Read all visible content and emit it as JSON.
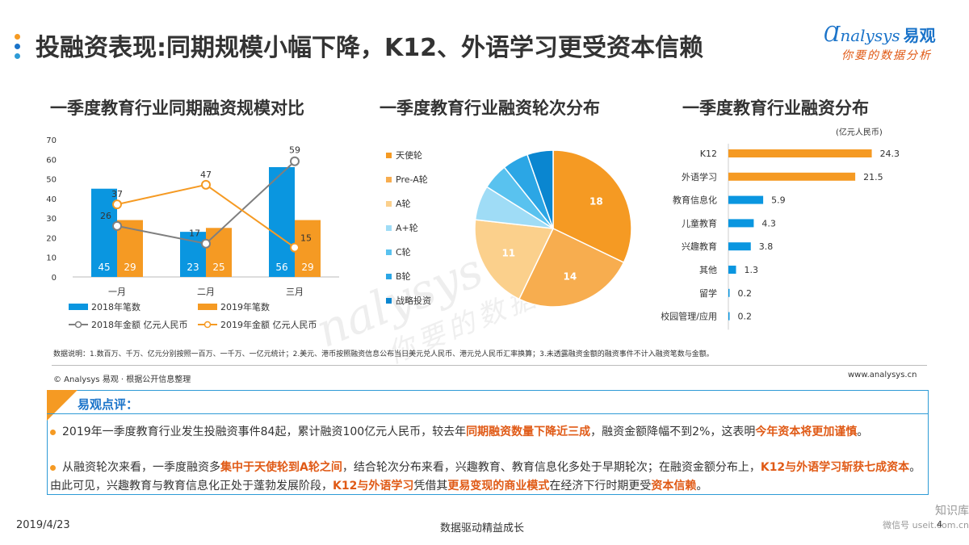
{
  "header": {
    "title": "投融资表现:同期规模小幅下降，K12、外语学习更受资本信赖",
    "dot_colors": [
      "#f59a23",
      "#1a73c9",
      "#2e9bd6"
    ],
    "logo_main": "nalysys",
    "logo_cn": "易观",
    "logo_slogan": "你要的数据分析"
  },
  "chart_data": [
    {
      "type": "bar",
      "title": "一季度教育行业同期融资规模对比",
      "categories": [
        "一月",
        "二月",
        "三月"
      ],
      "ylim": [
        0,
        70
      ],
      "yticks": [
        0,
        10,
        20,
        30,
        40,
        50,
        60,
        70
      ],
      "grid": false,
      "legend_placement": "bottom",
      "series": [
        {
          "name": "2018年笔数",
          "kind": "bar",
          "color": "#0a96e0",
          "values": [
            45,
            23,
            56
          ]
        },
        {
          "name": "2019年笔数",
          "kind": "bar",
          "color": "#f59a23",
          "values": [
            29,
            25,
            29
          ]
        },
        {
          "name": "2018年金额 亿元人民币",
          "kind": "line",
          "color": "#7f7f7f",
          "values": [
            26,
            17,
            59
          ]
        },
        {
          "name": "2019年金额 亿元人民币",
          "kind": "line",
          "color": "#f59a23",
          "values": [
            37,
            47,
            15
          ]
        }
      ]
    },
    {
      "type": "pie",
      "title": "一季度教育行业融资轮次分布",
      "legend_placement": "left",
      "labels": [
        "天使轮",
        "Pre-A轮",
        "A轮",
        "A+轮",
        "C轮",
        "B轮",
        "战略投资"
      ],
      "values": [
        18,
        14,
        11,
        4,
        3,
        3,
        3
      ],
      "shown_labels": [
        "18",
        "14",
        "11",
        "",
        "",
        "",
        ""
      ],
      "colors": [
        "#f59a23",
        "#f7ad4f",
        "#fbd08c",
        "#9fdcf6",
        "#59c2ef",
        "#2ba6e5",
        "#0a86d0"
      ]
    },
    {
      "type": "bar",
      "title": "一季度教育行业融资分布",
      "unit": "(亿元人民币)",
      "orientation": "horizontal",
      "categories": [
        "K12",
        "外语学习",
        "教育信息化",
        "儿童教育",
        "兴趣教育",
        "其他",
        "留学",
        "校园管理/应用"
      ],
      "values": [
        24.3,
        21.5,
        5.9,
        4.3,
        3.8,
        1.3,
        0.2,
        0.2
      ],
      "value_labels": [
        "24.3",
        "21.5",
        "5.9",
        "4.3",
        "3.8",
        "1.3",
        "0.2",
        "0.2"
      ],
      "colors": [
        "#f59a23",
        "#f59a23",
        "#0a96e0",
        "#0a96e0",
        "#0a96e0",
        "#0a96e0",
        "#0a96e0",
        "#0a96e0"
      ],
      "xlim": [
        0,
        26
      ]
    }
  ],
  "note": "数据说明：1.数百万、千万、亿元分别按照一百万、一千万、一亿元统计；2.美元、港币按照融资信息公布当日美元兑人民币、港元兑人民币汇率换算；3.未透露融资金额的融资事件不计入融资笔数与金额。",
  "source": "© Analysys 易观 · 根据公开信息整理",
  "site": "www.analysys.cn",
  "comment": {
    "title": "易观点评：",
    "p1": [
      {
        "t": "2019年一季度教育行业发生投融资事件84起，累计融资100亿元人民币，较去年",
        "h": false
      },
      {
        "t": "同期融资数量下降近三成",
        "h": true
      },
      {
        "t": "，融资金额降幅不到2%，这表明",
        "h": false
      },
      {
        "t": "今年资本将更加谨慎",
        "h": true
      },
      {
        "t": "。",
        "h": false
      }
    ],
    "p2": [
      {
        "t": "从融资轮次来看，一季度融资多",
        "h": false
      },
      {
        "t": "集中于天使轮到A轮之间",
        "h": true
      },
      {
        "t": "，结合轮次分布来看，兴趣教育、教育信息化多处于早期轮次；在融资金额分布上，",
        "h": false
      },
      {
        "t": "K12与外语学习斩获七成资本",
        "h": true
      },
      {
        "t": "。由此可见，兴趣教育与教育信息化正处于蓬勃发展阶段，",
        "h": false
      },
      {
        "t": "K12与外语学习",
        "h": true
      },
      {
        "t": "凭借其",
        "h": false
      },
      {
        "t": "更易变现的商业模式",
        "h": true
      },
      {
        "t": "在经济下行时期更受",
        "h": false
      },
      {
        "t": "资本信赖",
        "h": true
      },
      {
        "t": "。",
        "h": false
      }
    ]
  },
  "watermark": {
    "main": "nalysys 易观",
    "sub": "你要的数据分析"
  },
  "corner": {
    "brand": "知识库",
    "sub": "微信号 useit.com.cn"
  },
  "footer": {
    "date": "2019/4/23",
    "slogan": "数据驱动精益成长",
    "page": "4"
  }
}
